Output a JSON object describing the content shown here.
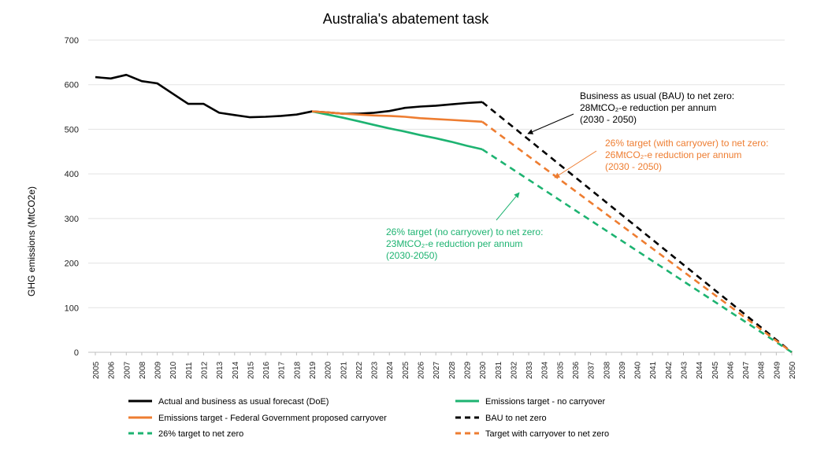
{
  "chart_data": {
    "type": "line",
    "title": "Australia's abatement task",
    "ylabel": "GHG emissions (MtCO2e)",
    "xlabel": "",
    "ylim": [
      0,
      700
    ],
    "yticks": [
      0,
      100,
      200,
      300,
      400,
      500,
      600,
      700
    ],
    "grid": "horizontal",
    "legend_position": "bottom",
    "x": [
      2005,
      2006,
      2007,
      2008,
      2009,
      2010,
      2011,
      2012,
      2013,
      2014,
      2015,
      2016,
      2017,
      2018,
      2019,
      2020,
      2021,
      2022,
      2023,
      2024,
      2025,
      2026,
      2027,
      2028,
      2029,
      2030,
      2031,
      2032,
      2033,
      2034,
      2035,
      2036,
      2037,
      2038,
      2039,
      2040,
      2041,
      2042,
      2043,
      2044,
      2045,
      2046,
      2047,
      2048,
      2049,
      2050
    ],
    "series": [
      {
        "name": "Actual and business as usual forecast (DoE)",
        "color": "#000000",
        "dash": "solid",
        "points": [
          [
            2005,
            617
          ],
          [
            2006,
            614
          ],
          [
            2007,
            622
          ],
          [
            2008,
            608
          ],
          [
            2009,
            603
          ],
          [
            2010,
            580
          ],
          [
            2011,
            557
          ],
          [
            2012,
            557
          ],
          [
            2013,
            537
          ],
          [
            2014,
            532
          ],
          [
            2015,
            527
          ],
          [
            2016,
            528
          ],
          [
            2017,
            530
          ],
          [
            2018,
            533
          ],
          [
            2019,
            540
          ],
          [
            2020,
            538
          ],
          [
            2021,
            535
          ],
          [
            2022,
            535
          ],
          [
            2023,
            537
          ],
          [
            2024,
            541
          ],
          [
            2025,
            548
          ],
          [
            2026,
            551
          ],
          [
            2027,
            553
          ],
          [
            2028,
            556
          ],
          [
            2029,
            559
          ],
          [
            2030,
            561
          ]
        ]
      },
      {
        "name": "Emissions target - no carryover",
        "color": "#1db371",
        "dash": "solid",
        "points": [
          [
            2019,
            540
          ],
          [
            2020,
            533
          ],
          [
            2021,
            526
          ],
          [
            2022,
            518
          ],
          [
            2023,
            510
          ],
          [
            2024,
            502
          ],
          [
            2025,
            495
          ],
          [
            2026,
            487
          ],
          [
            2027,
            480
          ],
          [
            2028,
            472
          ],
          [
            2029,
            463
          ],
          [
            2030,
            455
          ]
        ]
      },
      {
        "name": "Emissions target - Federal Government proposed carryover",
        "color": "#ee7d31",
        "dash": "solid",
        "points": [
          [
            2019,
            540
          ],
          [
            2020,
            538
          ],
          [
            2021,
            535
          ],
          [
            2022,
            533
          ],
          [
            2023,
            531
          ],
          [
            2024,
            530
          ],
          [
            2025,
            528
          ],
          [
            2026,
            525
          ],
          [
            2027,
            523
          ],
          [
            2028,
            521
          ],
          [
            2029,
            519
          ],
          [
            2030,
            517
          ]
        ]
      },
      {
        "name": "BAU to net zero",
        "color": "#000000",
        "dash": "dashed",
        "points": [
          [
            2030,
            561
          ],
          [
            2050,
            0
          ]
        ]
      },
      {
        "name": "26% target to net zero",
        "color": "#1db371",
        "dash": "dashed",
        "points": [
          [
            2030,
            455
          ],
          [
            2050,
            0
          ]
        ]
      },
      {
        "name": "Target with carryover to net zero",
        "color": "#ee7d31",
        "dash": "dashed",
        "points": [
          [
            2030,
            517
          ],
          [
            2050,
            0
          ]
        ]
      }
    ],
    "annotations": [
      {
        "lines": [
          "Business as usual (BAU) to net zero:",
          "28MtCO₂-e reduction per annum",
          "(2030 - 2050)"
        ],
        "color": "#000000",
        "anchor": [
          2033.5,
          490
        ]
      },
      {
        "lines": [
          "26% target (with carryover) to net zero:",
          "26MtCO₂-e reduction per annum",
          "(2030 - 2050)"
        ],
        "color": "#ee7d31",
        "anchor": [
          2035,
          385
        ]
      },
      {
        "lines": [
          "26% target (no carryover) to net zero:",
          "23MtCO₂-e reduction per annum",
          "(2030-2050)"
        ],
        "color": "#1db371",
        "anchor": [
          2033.3,
          360
        ]
      }
    ]
  }
}
